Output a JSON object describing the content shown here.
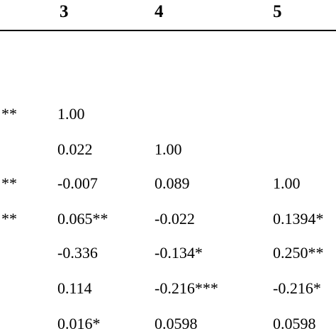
{
  "table": {
    "headers": [
      "3",
      "4",
      "5"
    ],
    "rows": [
      {
        "left": "**",
        "c3": "1.00",
        "c4": "",
        "c5": ""
      },
      {
        "left": "",
        "c3": "0.022",
        "c4": "1.00",
        "c5": ""
      },
      {
        "left": "**",
        "c3": "-0.007",
        "c4": "0.089",
        "c5": "1.00"
      },
      {
        "left": "**",
        "c3": "0.065**",
        "c4": "-0.022",
        "c5": "0.1394*"
      },
      {
        "left": "",
        "c3": "-0.336",
        "c4": "-0.134*",
        "c5": "0.250**"
      },
      {
        "left": "",
        "c3": "0.114",
        "c4": "-0.216***",
        "c5": "-0.216*"
      },
      {
        "left": "",
        "c3": "0.016*",
        "c4": "0.0598",
        "c5": "0.0598"
      }
    ]
  }
}
